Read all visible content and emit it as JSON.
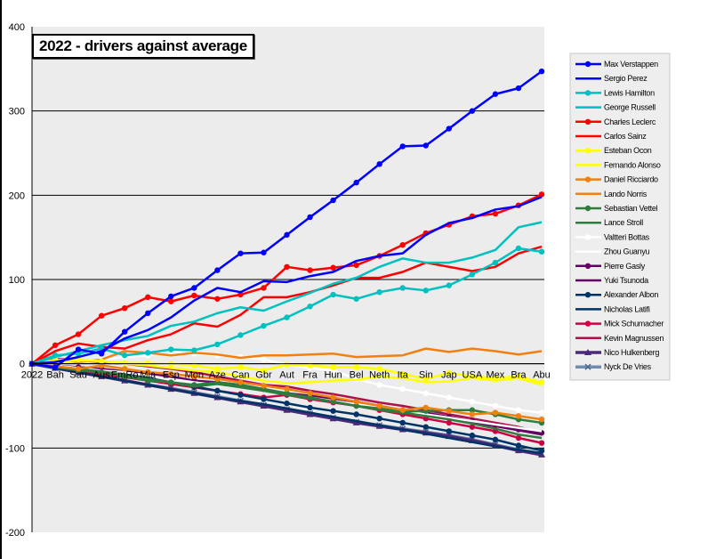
{
  "chart_data": {
    "type": "line",
    "title": "2022 - drivers against average",
    "xlabel": "",
    "ylabel": "",
    "ylim": [
      -200,
      400
    ],
    "yticks": [
      400,
      300,
      200,
      100,
      0,
      -100,
      -200
    ],
    "grid": true,
    "legend_position": "right",
    "categories": [
      "2022",
      "Bah",
      "Sau",
      "Aus",
      "EmRo",
      "Mia",
      "Esp",
      "Mon",
      "Aze",
      "Can",
      "Gbr",
      "Aut",
      "Fra",
      "Hun",
      "Bel",
      "Neth",
      "Ita",
      "Sin",
      "Jap",
      "USA",
      "Mex",
      "Bra",
      "Abu"
    ],
    "series": [
      {
        "name": "Max Verstappen",
        "color": "#0000FF",
        "marker": "circle",
        "values": [
          0,
          -4,
          17,
          12,
          38,
          60,
          80,
          90,
          111,
          131,
          132,
          153,
          174,
          194,
          215,
          237,
          258,
          259,
          279,
          300,
          320,
          327,
          347
        ]
      },
      {
        "name": "Sergio Perez",
        "color": "#0000FF",
        "marker": "none",
        "values": [
          0,
          2,
          8,
          15,
          30,
          40,
          55,
          75,
          90,
          85,
          98,
          97,
          104,
          109,
          122,
          128,
          131,
          153,
          167,
          173,
          183,
          187,
          198
        ]
      },
      {
        "name": "Lewis Hamilton",
        "color": "#00C0C0",
        "marker": "circle",
        "values": [
          0,
          10,
          12,
          18,
          10,
          13,
          17,
          16,
          23,
          34,
          45,
          55,
          68,
          82,
          77,
          85,
          90,
          87,
          93,
          106,
          120,
          137,
          133
        ]
      },
      {
        "name": "George Russell",
        "color": "#00C0C0",
        "marker": "none",
        "values": [
          0,
          8,
          15,
          22,
          28,
          33,
          45,
          50,
          60,
          67,
          63,
          74,
          84,
          95,
          102,
          115,
          125,
          120,
          120,
          126,
          135,
          162,
          168
        ]
      },
      {
        "name": "Charles Leclerc",
        "color": "#FF0000",
        "marker": "circle",
        "values": [
          0,
          22,
          35,
          57,
          66,
          79,
          74,
          81,
          77,
          82,
          90,
          115,
          111,
          114,
          117,
          128,
          141,
          155,
          165,
          175,
          178,
          188,
          201
        ]
      },
      {
        "name": "Carlos Sainz",
        "color": "#FF0000",
        "marker": "none",
        "values": [
          0,
          15,
          24,
          20,
          18,
          28,
          35,
          48,
          44,
          58,
          79,
          79,
          85,
          93,
          102,
          102,
          109,
          120,
          115,
          110,
          115,
          131,
          139
        ]
      },
      {
        "name": "Esteban Ocon",
        "color": "#FFFF00",
        "marker": "circle",
        "values": [
          0,
          4,
          5,
          3,
          1,
          1,
          0,
          -2,
          -6,
          -4,
          -8,
          -1,
          -2,
          -4,
          -4,
          -6,
          -12,
          -18,
          -11,
          -15,
          -17,
          -15,
          -22
        ]
      },
      {
        "name": "Fernando Alonso",
        "color": "#FFFF00",
        "marker": "none",
        "values": [
          0,
          2,
          4,
          3,
          0,
          -2,
          -5,
          -8,
          -10,
          -15,
          -20,
          -23,
          -22,
          -20,
          -19,
          -15,
          -17,
          -22,
          -21,
          -17,
          -20,
          -17,
          -25
        ]
      },
      {
        "name": "Daniel Ricciardo",
        "color": "#F08010",
        "marker": "circle",
        "values": [
          0,
          -3,
          -6,
          -2,
          -6,
          -10,
          -12,
          -15,
          -18,
          -22,
          -26,
          -30,
          -35,
          -40,
          -45,
          -50,
          -55,
          -52,
          -56,
          -60,
          -58,
          -62,
          -66
        ]
      },
      {
        "name": "Lando Norris",
        "color": "#F08010",
        "marker": "none",
        "values": [
          0,
          5,
          2,
          5,
          15,
          13,
          10,
          13,
          11,
          7,
          10,
          10,
          11,
          12,
          8,
          9,
          10,
          18,
          14,
          18,
          15,
          11,
          15
        ]
      },
      {
        "name": "Sebastian Vettel",
        "color": "#2E7D3E",
        "marker": "circle",
        "values": [
          0,
          -4,
          -8,
          -10,
          -15,
          -20,
          -22,
          -25,
          -22,
          -25,
          -30,
          -35,
          -40,
          -45,
          -50,
          -53,
          -57,
          -56,
          -55,
          -55,
          -60,
          -66,
          -70
        ]
      },
      {
        "name": "Lance Stroll",
        "color": "#2E7D3E",
        "marker": "none",
        "values": [
          0,
          -3,
          -6,
          -9,
          -13,
          -18,
          -22,
          -27,
          -24,
          -28,
          -32,
          -37,
          -41,
          -45,
          -50,
          -55,
          -58,
          -62,
          -66,
          -71,
          -77,
          -84,
          -88
        ]
      },
      {
        "name": "Valtteri Bottas",
        "color": "#FFFFFF",
        "marker": "circle",
        "values": [
          0,
          5,
          3,
          5,
          8,
          10,
          13,
          12,
          10,
          8,
          5,
          -1,
          -5,
          -8,
          -18,
          -25,
          -30,
          -35,
          -40,
          -45,
          -50,
          -55,
          -58
        ]
      },
      {
        "name": "Zhou Guanyu",
        "color": "#FFFFFF",
        "marker": "none",
        "values": [
          0,
          -2,
          -5,
          -8,
          -10,
          -14,
          -18,
          -22,
          -25,
          -28,
          -32,
          -36,
          -40,
          -44,
          -48,
          -52,
          -56,
          -60,
          -64,
          -68,
          -72,
          -76,
          -80
        ]
      },
      {
        "name": "Pierre Gasly",
        "color": "#660066",
        "marker": "circle",
        "values": [
          0,
          -2,
          -4,
          -6,
          -9,
          -12,
          -15,
          -20,
          -22,
          -25,
          -30,
          -35,
          -38,
          -42,
          -45,
          -50,
          -55,
          -58,
          -63,
          -68,
          -73,
          -78,
          -82
        ]
      },
      {
        "name": "Yuki Tsunoda",
        "color": "#660066",
        "marker": "none",
        "values": [
          0,
          -3,
          -5,
          -7,
          -10,
          -13,
          -17,
          -21,
          -24,
          -27,
          -31,
          -35,
          -40,
          -44,
          -48,
          -52,
          -56,
          -60,
          -64,
          -69,
          -74,
          -79,
          -84
        ]
      },
      {
        "name": "Alexander Albon",
        "color": "#003366",
        "marker": "circle",
        "values": [
          0,
          -5,
          -7,
          -8,
          -12,
          -17,
          -22,
          -27,
          -32,
          -37,
          -42,
          -47,
          -52,
          -56,
          -60,
          -65,
          -70,
          -75,
          -80,
          -85,
          -90,
          -97,
          -103
        ]
      },
      {
        "name": "Nicholas Latifi",
        "color": "#003366",
        "marker": "none",
        "values": [
          0,
          -5,
          -10,
          -15,
          -20,
          -25,
          -30,
          -35,
          -40,
          -44,
          -48,
          -53,
          -58,
          -63,
          -68,
          -73,
          -78,
          -83,
          -88,
          -93,
          -98,
          -102,
          -106
        ]
      },
      {
        "name": "Mick Schumacher",
        "color": "#CC0044",
        "marker": "circle",
        "values": [
          0,
          -4,
          -8,
          -12,
          -16,
          -20,
          -24,
          -28,
          -32,
          -36,
          -40,
          -37,
          -42,
          -46,
          -50,
          -55,
          -60,
          -65,
          -70,
          -75,
          -80,
          -88,
          -94
        ]
      },
      {
        "name": "Kevin Magnussen",
        "color": "#B0104A",
        "marker": "none",
        "values": [
          0,
          6,
          4,
          2,
          0,
          -3,
          -6,
          -10,
          -15,
          -20,
          -25,
          -27,
          -32,
          -36,
          -41,
          -46,
          -50,
          -55,
          -60,
          -65,
          -70,
          -75,
          -82
        ]
      },
      {
        "name": "Nico Hulkenberg",
        "color": "#4B2878",
        "marker": "triangle",
        "values": [
          0,
          -5,
          -10,
          -15,
          -20,
          -25,
          -30,
          -35,
          -40,
          -45,
          -50,
          -55,
          -60,
          -65,
          -70,
          -74,
          -78,
          -82,
          -86,
          -91,
          -97,
          -103,
          -108
        ]
      },
      {
        "name": "Nyck De Vries",
        "color": "#6F8BAE",
        "marker": "x",
        "values": [
          0,
          -5,
          -10,
          -15,
          -20,
          -25,
          -29,
          -34,
          -39,
          -44,
          -49,
          -54,
          -59,
          -64,
          -69,
          -73,
          -77,
          -81,
          -85,
          -90,
          -96,
          -102,
          -107
        ]
      }
    ]
  }
}
